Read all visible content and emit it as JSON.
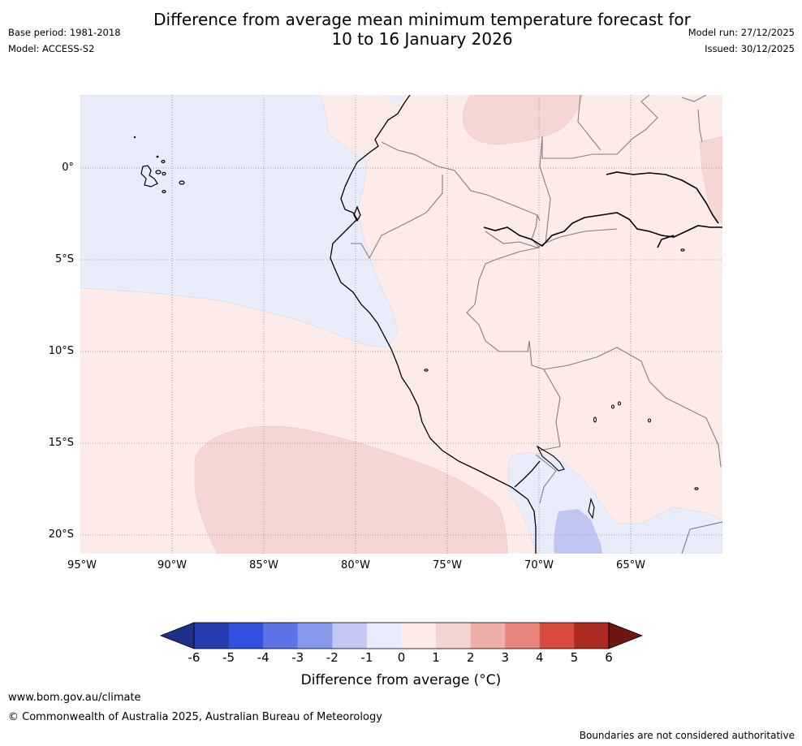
{
  "header": {
    "title_line1": "Difference from average mean minimum temperature forecast for",
    "title_line2": "10 to 16 January 2026",
    "base_period": "Base period: 1981-2018",
    "model": "Model: ACCESS-S2",
    "model_run": "Model run: 27/12/2025",
    "issued": "Issued: 30/12/2025"
  },
  "map": {
    "region": "Western South America (Ecuador, Peru, northern Chile, Bolivia, western Brazil)",
    "lon_range": [
      -95,
      -60
    ],
    "lat_range": [
      -21,
      4
    ],
    "lat_labels": [
      "0°",
      "5°S",
      "10°S",
      "15°S",
      "20°S"
    ],
    "lon_labels": [
      "95°W",
      "90°W",
      "85°W",
      "80°W",
      "75°W",
      "70°W",
      "65°W"
    ],
    "colors": {
      "ocean_neg": "#e8ecfb",
      "land_pos_light": "#fcebe8",
      "pos_medium": "#f5d6d3",
      "neg_medium": "#c0c6f2"
    }
  },
  "colorbar": {
    "ticks": [
      "-6",
      "-5",
      "-4",
      "-3",
      "-2",
      "-1",
      "0",
      "1",
      "2",
      "3",
      "4",
      "5",
      "6"
    ],
    "colors": [
      "#1f2f8c",
      "#253db0",
      "#3350e0",
      "#5c74e6",
      "#8797eb",
      "#c2c8f3",
      "#e8ebfb",
      "#fcebe9",
      "#f4d4d1",
      "#efaea9",
      "#e8857d",
      "#d94a3e",
      "#ac2a22",
      "#6e1711"
    ],
    "label": "Difference from average (°C)"
  },
  "footer": {
    "website": "www.bom.gov.au/climate",
    "copyright": "© Commonwealth of Australia 2025, Australian Bureau of Meteorology",
    "disclaimer": "Boundaries are not considered authoritative"
  }
}
